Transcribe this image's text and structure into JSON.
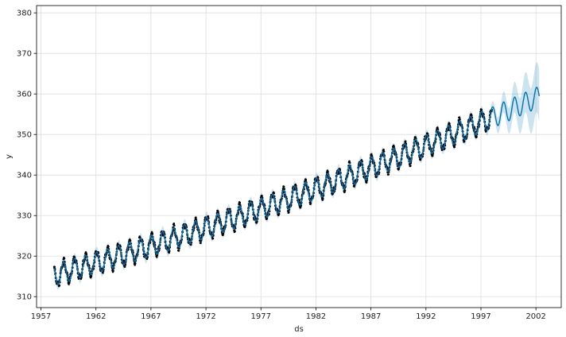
{
  "chart_data": {
    "type": "line",
    "title": "",
    "xlabel": "ds",
    "ylabel": "y",
    "xlim": [
      1956.6,
      2004.3
    ],
    "ylim": [
      307.3,
      381.8
    ],
    "x_ticks": [
      1957,
      1962,
      1967,
      1972,
      1977,
      1982,
      1987,
      1992,
      1997,
      2002
    ],
    "y_ticks": [
      310,
      320,
      330,
      340,
      350,
      360,
      370,
      380
    ],
    "grid": true,
    "legend": "none",
    "colors": {
      "observed": "#000000",
      "forecast": "#0072B2",
      "uncertainty": "#0072B2",
      "grid": "#dddddd",
      "axes": "#000000"
    },
    "observed": {
      "start": 1958.2,
      "end": 1998.0,
      "step": 0.0192,
      "trend": {
        "base": 315.2,
        "linear": 0.77,
        "quadratic": 0.0051,
        "origin": 1958
      },
      "seasonal": {
        "amplitude": 2.6,
        "phase": 1.2
      }
    },
    "forecast": {
      "start": 1958.2,
      "end": 2002.3,
      "trend": {
        "base": 315.2,
        "linear": 0.77,
        "quadratic": 0.0051,
        "origin": 1958
      },
      "seasonal": {
        "amplitude": 2.6,
        "phase": 1.2
      },
      "band_in_sample": 1.3,
      "band_growth_per_year": 1.2
    }
  }
}
